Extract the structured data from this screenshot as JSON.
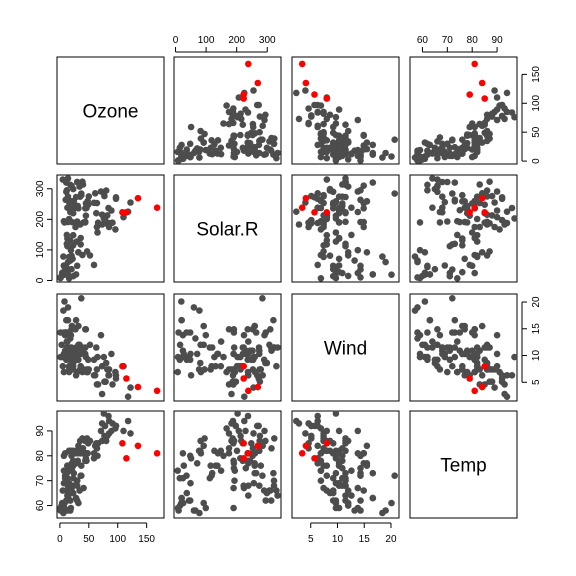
{
  "chart_data": {
    "type": "scatter",
    "variables": [
      "Ozone",
      "Solar.R",
      "Wind",
      "Temp"
    ],
    "axes": {
      "Ozone": {
        "range": [
          -5,
          180
        ],
        "ticks": [
          0,
          50,
          100,
          150
        ],
        "tick_labels": [
          "0",
          "50",
          "100",
          "150"
        ]
      },
      "Solar.R": {
        "range": [
          -5,
          345
        ],
        "ticks": [
          0,
          100,
          200,
          300
        ],
        "tick_labels": [
          "0",
          "100",
          "200",
          "300"
        ]
      },
      "Wind": {
        "range": [
          1.5,
          21.5
        ],
        "ticks": [
          5,
          10,
          15,
          20
        ],
        "tick_labels": [
          "5",
          "10",
          "15",
          "20"
        ]
      },
      "Temp": {
        "range": [
          55,
          98
        ],
        "ticks": [
          60,
          70,
          80,
          90
        ],
        "tick_labels": [
          "60",
          "70",
          "80",
          "90"
        ]
      }
    },
    "tick_positions": {
      "top": [
        "Solar.R",
        "Temp"
      ],
      "bottom": [
        "Ozone",
        "Wind"
      ],
      "left": [
        "Solar.R",
        "Temp"
      ],
      "right": [
        "Ozone",
        "Wind"
      ]
    },
    "point_colors": {
      "default": "#4d4d4d",
      "highlight": "#ff0000"
    },
    "points": [
      [
        41,
        190,
        7.4,
        67,
        0
      ],
      [
        36,
        118,
        8.0,
        72,
        0
      ],
      [
        12,
        149,
        12.6,
        74,
        0
      ],
      [
        18,
        313,
        11.5,
        62,
        0
      ],
      [
        28,
        20,
        16.6,
        63,
        0
      ],
      [
        23,
        299,
        8.6,
        65,
        0
      ],
      [
        19,
        99,
        13.8,
        59,
        0
      ],
      [
        8,
        19,
        20.1,
        61,
        0
      ],
      [
        7,
        194,
        6.9,
        74,
        0
      ],
      [
        16,
        256,
        9.7,
        69,
        0
      ],
      [
        11,
        290,
        9.2,
        66,
        0
      ],
      [
        14,
        274,
        10.9,
        68,
        0
      ],
      [
        18,
        65,
        13.2,
        58,
        0
      ],
      [
        14,
        334,
        11.5,
        64,
        0
      ],
      [
        34,
        307,
        12.0,
        66,
        0
      ],
      [
        6,
        78,
        18.4,
        57,
        0
      ],
      [
        30,
        322,
        11.5,
        68,
        0
      ],
      [
        11,
        44,
        9.7,
        62,
        0
      ],
      [
        1,
        8,
        9.7,
        59,
        0
      ],
      [
        11,
        320,
        16.6,
        73,
        0
      ],
      [
        4,
        25,
        9.7,
        61,
        0
      ],
      [
        32,
        92,
        12.0,
        61,
        0
      ],
      [
        45,
        252,
        14.9,
        81,
        0
      ],
      [
        115,
        223,
        5.7,
        79,
        1
      ],
      [
        37,
        279,
        7.4,
        76,
        0
      ],
      [
        29,
        127,
        9.7,
        82,
        0
      ],
      [
        71,
        291,
        13.8,
        90,
        0
      ],
      [
        39,
        323,
        11.5,
        87,
        0
      ],
      [
        23,
        148,
        8.0,
        82,
        0
      ],
      [
        21,
        191,
        14.9,
        77,
        0
      ],
      [
        37,
        284,
        20.7,
        72,
        0
      ],
      [
        20,
        37,
        9.2,
        65,
        0
      ],
      [
        12,
        120,
        11.5,
        73,
        0
      ],
      [
        13,
        137,
        10.3,
        76,
        0
      ],
      [
        135,
        269,
        4.1,
        84,
        1
      ],
      [
        49,
        248,
        9.2,
        85,
        0
      ],
      [
        32,
        236,
        9.2,
        81,
        0
      ],
      [
        64,
        175,
        4.6,
        83,
        0
      ],
      [
        40,
        314,
        10.9,
        83,
        0
      ],
      [
        77,
        276,
        5.1,
        88,
        0
      ],
      [
        97,
        267,
        6.3,
        92,
        0
      ],
      [
        97,
        272,
        5.7,
        92,
        0
      ],
      [
        85,
        175,
        7.4,
        89,
        0
      ],
      [
        10,
        264,
        14.3,
        73,
        0
      ],
      [
        27,
        175,
        14.9,
        81,
        0
      ],
      [
        7,
        48,
        14.3,
        80,
        0
      ],
      [
        48,
        260,
        6.9,
        81,
        0
      ],
      [
        35,
        274,
        10.3,
        82,
        0
      ],
      [
        61,
        285,
        6.3,
        84,
        0
      ],
      [
        79,
        187,
        5.1,
        87,
        0
      ],
      [
        63,
        220,
        11.5,
        85,
        0
      ],
      [
        16,
        7,
        6.9,
        74,
        0
      ],
      [
        80,
        294,
        8.6,
        86,
        0
      ],
      [
        108,
        223,
        8.0,
        85,
        1
      ],
      [
        20,
        81,
        8.6,
        82,
        0
      ],
      [
        52,
        82,
        12.0,
        86,
        0
      ],
      [
        82,
        213,
        7.4,
        88,
        0
      ],
      [
        50,
        275,
        7.4,
        86,
        0
      ],
      [
        64,
        253,
        7.4,
        83,
        0
      ],
      [
        59,
        254,
        9.2,
        81,
        0
      ],
      [
        39,
        83,
        6.9,
        81,
        0
      ],
      [
        9,
        24,
        13.8,
        81,
        0
      ],
      [
        16,
        77,
        7.4,
        82,
        0
      ],
      [
        78,
        197,
        5.1,
        92,
        0
      ],
      [
        35,
        183,
        7.4,
        86,
        0
      ],
      [
        66,
        189,
        4.6,
        85,
        0
      ],
      [
        122,
        255,
        4.0,
        89,
        0
      ],
      [
        89,
        229,
        10.3,
        90,
        0
      ],
      [
        110,
        207,
        8.0,
        90,
        0
      ],
      [
        44,
        192,
        11.5,
        86,
        0
      ],
      [
        28,
        273,
        11.5,
        82,
        0
      ],
      [
        65,
        157,
        9.7,
        80,
        0
      ],
      [
        22,
        71,
        10.3,
        77,
        0
      ],
      [
        59,
        51,
        6.3,
        79,
        0
      ],
      [
        23,
        115,
        7.4,
        76,
        0
      ],
      [
        31,
        244,
        10.9,
        78,
        0
      ],
      [
        44,
        190,
        10.3,
        78,
        0
      ],
      [
        21,
        259,
        15.5,
        77,
        0
      ],
      [
        9,
        36,
        14.3,
        72,
        0
      ],
      [
        45,
        212,
        9.7,
        79,
        0
      ],
      [
        168,
        238,
        3.4,
        81,
        1
      ],
      [
        73,
        215,
        8.0,
        86,
        0
      ],
      [
        76,
        203,
        9.7,
        97,
        0
      ],
      [
        118,
        225,
        2.3,
        94,
        0
      ],
      [
        84,
        237,
        6.3,
        96,
        0
      ],
      [
        85,
        188,
        6.3,
        94,
        0
      ],
      [
        96,
        167,
        6.9,
        91,
        0
      ],
      [
        78,
        197,
        5.1,
        92,
        0
      ],
      [
        73,
        183,
        2.8,
        93,
        0
      ],
      [
        91,
        189,
        4.6,
        93,
        0
      ],
      [
        47,
        95,
        7.4,
        87,
        0
      ],
      [
        32,
        92,
        15.5,
        84,
        0
      ],
      [
        20,
        252,
        10.9,
        80,
        0
      ],
      [
        23,
        220,
        10.3,
        78,
        0
      ],
      [
        21,
        230,
        10.9,
        75,
        0
      ],
      [
        24,
        259,
        9.7,
        73,
        0
      ],
      [
        44,
        236,
        14.9,
        81,
        0
      ],
      [
        21,
        259,
        15.5,
        76,
        0
      ],
      [
        28,
        238,
        6.3,
        77,
        0
      ],
      [
        9,
        24,
        10.9,
        71,
        0
      ],
      [
        13,
        112,
        11.5,
        71,
        0
      ],
      [
        46,
        237,
        6.9,
        78,
        0
      ],
      [
        18,
        224,
        13.8,
        67,
        0
      ],
      [
        13,
        27,
        10.3,
        76,
        0
      ],
      [
        24,
        238,
        10.3,
        68,
        0
      ],
      [
        16,
        201,
        8.0,
        82,
        0
      ],
      [
        13,
        238,
        12.6,
        64,
        0
      ],
      [
        23,
        14,
        9.2,
        71,
        0
      ],
      [
        36,
        139,
        10.3,
        81,
        0
      ],
      [
        7,
        49,
        10.3,
        69,
        0
      ],
      [
        14,
        20,
        16.6,
        63,
        0
      ],
      [
        30,
        193,
        6.9,
        70,
        0
      ],
      [
        14,
        191,
        14.3,
        75,
        0
      ],
      [
        18,
        131,
        8.0,
        76,
        0
      ],
      [
        20,
        223,
        11.5,
        68,
        0
      ],
      [
        5,
        330,
        8.0,
        66,
        0
      ],
      [
        12,
        295,
        14.3,
        62,
        0
      ],
      [
        30,
        322,
        11.5,
        70,
        0
      ],
      [
        3,
        15,
        12.0,
        60,
        0
      ],
      [
        1,
        10,
        14.3,
        58,
        0
      ],
      [
        14,
        60,
        19.0,
        58,
        0
      ],
      [
        30,
        48,
        9.2,
        62,
        0
      ],
      [
        8,
        190,
        10.3,
        59,
        0
      ],
      [
        20,
        310,
        14.9,
        66,
        0
      ]
    ]
  }
}
